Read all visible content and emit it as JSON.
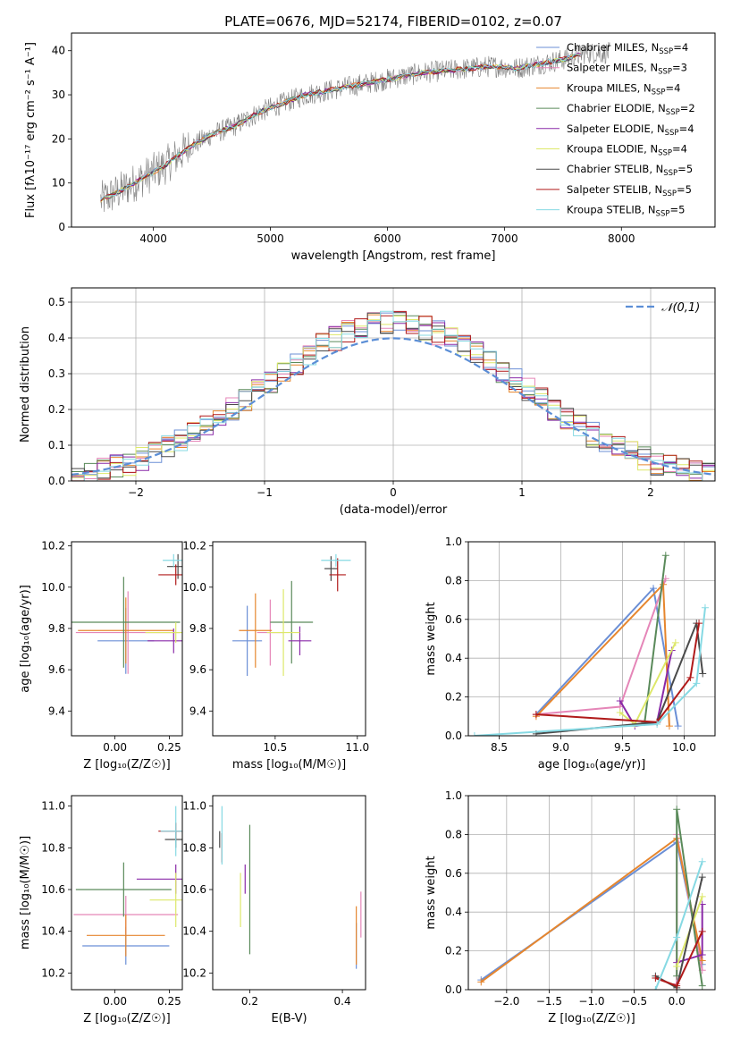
{
  "figure": {
    "title": "PLATE=0676, MJD=52174, FIBERID=0102, z=0.07"
  },
  "models": [
    {
      "name": "Chabrier MILES",
      "nssp": "4",
      "color": "#6b8fd6"
    },
    {
      "name": "Salpeter MILES",
      "nssp": "3",
      "color": "#e586b8"
    },
    {
      "name": "Kroupa MILES",
      "nssp": "4",
      "color": "#e6862e"
    },
    {
      "name": "Chabrier ELODIE",
      "nssp": "2",
      "color": "#5a8a5a"
    },
    {
      "name": "Salpeter ELODIE",
      "nssp": "4",
      "color": "#8a2aa8"
    },
    {
      "name": "Kroupa ELODIE",
      "nssp": "4",
      "color": "#dde86a"
    },
    {
      "name": "Chabrier STELIB",
      "nssp": "5",
      "color": "#4a4a4a"
    },
    {
      "name": "Salpeter STELIB",
      "nssp": "5",
      "color": "#b01a1a"
    },
    {
      "name": "Kroupa STELIB",
      "nssp": "5",
      "color": "#86d9e3"
    }
  ],
  "chart_data": [
    {
      "id": "spectrum",
      "type": "line",
      "xlabel": "wavelength [Angstrom, rest frame]",
      "ylabel": "Flux [fλ10⁻¹⁷ erg cm⁻² s⁻¹ A⁻¹]",
      "xlim": [
        3300,
        8800
      ],
      "ylim": [
        0,
        44
      ],
      "xticks": [
        4000,
        5000,
        6000,
        7000,
        8000
      ],
      "yticks": [
        0,
        10,
        20,
        30,
        40
      ],
      "legend_position": "top-right",
      "data_color": "#808080",
      "spectrum_x": [
        3550,
        3700,
        3900,
        4100,
        4300,
        4500,
        4700,
        4900,
        5100,
        5300,
        5500,
        5700,
        5900,
        6100,
        6300,
        6500,
        6700,
        6900,
        7100,
        7300,
        7500,
        7700
      ],
      "spectrum_y": [
        6,
        8,
        11,
        14,
        18,
        21,
        23,
        26,
        28,
        30,
        31,
        32,
        33,
        34,
        35,
        35.5,
        36,
        36.5,
        36,
        37,
        38,
        39.5
      ]
    },
    {
      "id": "residuals",
      "type": "line",
      "xlabel": "(data-model)/error",
      "ylabel": "Normed distribution",
      "xlim": [
        -2.5,
        2.5
      ],
      "ylim": [
        0,
        0.54
      ],
      "xticks": [
        -2,
        -1,
        0,
        1,
        2
      ],
      "yticks": [
        0.0,
        0.1,
        0.2,
        0.3,
        0.4,
        0.5
      ],
      "grid": true,
      "gaussian_label": "𝒩(0,1)",
      "gaussian_color": "#5b8ed6",
      "legend_position": "top-right"
    },
    {
      "id": "age-vs-Z",
      "type": "scatter",
      "xlabel": "Z [log₁₀(Z/Z☉)]",
      "ylabel": "age  [log₁₀(age/yr)]",
      "xlim": [
        -0.2,
        0.31
      ],
      "ylim": [
        9.28,
        10.22
      ],
      "xticks": [
        0.0,
        0.25
      ],
      "yticks": [
        9.4,
        9.6,
        9.8,
        10.0,
        10.2
      ],
      "points": [
        {
          "model": 0,
          "x": 0.05,
          "y": 9.74,
          "xerr": 0.13,
          "yerr": 0.16
        },
        {
          "model": 1,
          "x": 0.06,
          "y": 9.78,
          "xerr": 0.24,
          "yerr": 0.2
        },
        {
          "model": 2,
          "x": 0.05,
          "y": 9.79,
          "xerr": 0.22,
          "yerr": 0.16
        },
        {
          "model": 3,
          "x": 0.04,
          "y": 9.83,
          "xerr": 0.26,
          "yerr": 0.22
        },
        {
          "model": 4,
          "x": 0.27,
          "y": 9.74,
          "xerr": 0.12,
          "yerr": 0.06
        },
        {
          "model": 5,
          "x": 0.28,
          "y": 9.78,
          "xerr": 0.14,
          "yerr": 0.05
        },
        {
          "model": 6,
          "x": 0.29,
          "y": 10.1,
          "xerr": 0.05,
          "yerr": 0.06
        },
        {
          "model": 7,
          "x": 0.28,
          "y": 10.06,
          "xerr": 0.08,
          "yerr": 0.05
        },
        {
          "model": 8,
          "x": 0.27,
          "y": 10.13,
          "xerr": 0.05,
          "yerr": 0.03
        }
      ]
    },
    {
      "id": "age-vs-mass",
      "type": "scatter",
      "xlabel": "mass [log₁₀(M/M☉)]",
      "ylabel": "",
      "xlim": [
        10.12,
        11.05
      ],
      "ylim": [
        9.28,
        10.22
      ],
      "xticks": [
        10.5,
        11.0
      ],
      "yticks": [
        9.4,
        9.6,
        9.8,
        10.0,
        10.2
      ],
      "points": [
        {
          "model": 0,
          "x": 10.33,
          "y": 9.74,
          "xerr": 0.09,
          "yerr": 0.17
        },
        {
          "model": 1,
          "x": 10.47,
          "y": 9.78,
          "xerr": 0.08,
          "yerr": 0.16
        },
        {
          "model": 2,
          "x": 10.38,
          "y": 9.79,
          "xerr": 0.1,
          "yerr": 0.18
        },
        {
          "model": 3,
          "x": 10.6,
          "y": 9.83,
          "xerr": 0.13,
          "yerr": 0.2
        },
        {
          "model": 4,
          "x": 10.65,
          "y": 9.74,
          "xerr": 0.07,
          "yerr": 0.07
        },
        {
          "model": 5,
          "x": 10.55,
          "y": 9.78,
          "xerr": 0.1,
          "yerr": 0.21
        },
        {
          "model": 6,
          "x": 10.84,
          "y": 10.09,
          "xerr": 0.04,
          "yerr": 0.06
        },
        {
          "model": 7,
          "x": 10.88,
          "y": 10.06,
          "xerr": 0.05,
          "yerr": 0.08
        },
        {
          "model": 8,
          "x": 10.87,
          "y": 10.13,
          "xerr": 0.09,
          "yerr": 0.03
        }
      ]
    },
    {
      "id": "weight-vs-age",
      "type": "line",
      "xlabel": "age  [log₁₀(age/yr)]",
      "ylabel": "mass weight",
      "xlim": [
        8.25,
        10.25
      ],
      "ylim": [
        0,
        1.0
      ],
      "xticks": [
        8.5,
        9.0,
        9.5,
        10.0
      ],
      "yticks": [
        0.0,
        0.2,
        0.4,
        0.6,
        0.8,
        1.0
      ],
      "grid": true,
      "series": [
        {
          "model": 0,
          "x": [
            8.8,
            9.75,
            9.95
          ],
          "y": [
            0.11,
            0.76,
            0.05
          ]
        },
        {
          "model": 1,
          "x": [
            8.8,
            9.48,
            9.85
          ],
          "y": [
            0.11,
            0.15,
            0.81
          ]
        },
        {
          "model": 2,
          "x": [
            8.8,
            9.83,
            9.88
          ],
          "y": [
            0.1,
            0.78,
            0.05
          ]
        },
        {
          "model": 3,
          "x": [
            9.68,
            9.85
          ],
          "y": [
            0.07,
            0.93
          ]
        },
        {
          "model": 4,
          "x": [
            9.48,
            9.6,
            9.78,
            9.9
          ],
          "y": [
            0.18,
            0.05,
            0.07,
            0.44
          ]
        },
        {
          "model": 5,
          "x": [
            9.48,
            9.6,
            9.93
          ],
          "y": [
            0.12,
            0.06,
            0.48
          ]
        },
        {
          "model": 6,
          "x": [
            8.8,
            9.78,
            10.1,
            10.15
          ],
          "y": [
            0.01,
            0.07,
            0.58,
            0.32
          ]
        },
        {
          "model": 7,
          "x": [
            8.8,
            9.78,
            10.05,
            10.12
          ],
          "y": [
            0.11,
            0.07,
            0.3,
            0.58
          ]
        },
        {
          "model": 8,
          "x": [
            8.3,
            9.78,
            10.1,
            10.17
          ],
          "y": [
            0.0,
            0.06,
            0.27,
            0.66
          ]
        }
      ]
    },
    {
      "id": "mass-vs-Z",
      "type": "scatter",
      "xlabel": "Z [log₁₀(Z/Z☉)]",
      "ylabel": "mass [log₁₀(M/M☉)]",
      "xlim": [
        -0.2,
        0.31
      ],
      "ylim": [
        10.12,
        11.05
      ],
      "xticks": [
        0.0,
        0.25
      ],
      "yticks": [
        10.2,
        10.4,
        10.6,
        10.8,
        11.0
      ],
      "points": [
        {
          "model": 0,
          "x": 0.05,
          "y": 10.33,
          "xerr": 0.2,
          "yerr": 0.09
        },
        {
          "model": 1,
          "x": 0.05,
          "y": 10.48,
          "xerr": 0.24,
          "yerr": 0.09
        },
        {
          "model": 2,
          "x": 0.05,
          "y": 10.38,
          "xerr": 0.18,
          "yerr": 0.1
        },
        {
          "model": 3,
          "x": 0.04,
          "y": 10.6,
          "xerr": 0.22,
          "yerr": 0.13
        },
        {
          "model": 4,
          "x": 0.28,
          "y": 10.65,
          "xerr": 0.18,
          "yerr": 0.07
        },
        {
          "model": 5,
          "x": 0.28,
          "y": 10.55,
          "xerr": 0.12,
          "yerr": 0.13
        },
        {
          "model": 6,
          "x": 0.28,
          "y": 10.84,
          "xerr": 0.05,
          "yerr": 0.04
        },
        {
          "model": 7,
          "x": 0.28,
          "y": 10.88,
          "xerr": 0.08,
          "yerr": 0.04
        },
        {
          "model": 8,
          "x": 0.28,
          "y": 10.88,
          "xerr": 0.07,
          "yerr": 0.12
        }
      ]
    },
    {
      "id": "mass-vs-ebv",
      "type": "scatter",
      "xlabel": "E(B-V)",
      "ylabel": "",
      "xlim": [
        0.12,
        0.45
      ],
      "ylim": [
        10.12,
        11.05
      ],
      "xticks": [
        0.2,
        0.4
      ],
      "yticks": [
        10.2,
        10.4,
        10.6,
        10.8,
        11.0
      ],
      "points": [
        {
          "model": 0,
          "x": 0.43,
          "y": 10.33,
          "xerr": 0.0,
          "yerr": 0.11
        },
        {
          "model": 1,
          "x": 0.44,
          "y": 10.48,
          "xerr": 0.0,
          "yerr": 0.11
        },
        {
          "model": 2,
          "x": 0.43,
          "y": 10.38,
          "xerr": 0.0,
          "yerr": 0.14
        },
        {
          "model": 3,
          "x": 0.2,
          "y": 10.6,
          "xerr": 0.0,
          "yerr": 0.31
        },
        {
          "model": 4,
          "x": 0.19,
          "y": 10.65,
          "xerr": 0.0,
          "yerr": 0.07
        },
        {
          "model": 5,
          "x": 0.18,
          "y": 10.55,
          "xerr": 0.0,
          "yerr": 0.13
        },
        {
          "model": 6,
          "x": 0.135,
          "y": 10.84,
          "xerr": 0.0,
          "yerr": 0.04
        },
        {
          "model": 7,
          "x": 0.14,
          "y": 10.8,
          "xerr": 0.0,
          "yerr": 0.07
        },
        {
          "model": 8,
          "x": 0.14,
          "y": 10.86,
          "xerr": 0.0,
          "yerr": 0.14
        }
      ]
    },
    {
      "id": "weight-vs-Z",
      "type": "line",
      "xlabel": "Z [log₁₀(Z/Z☉)]",
      "ylabel": "mass weight",
      "xlim": [
        -2.45,
        0.45
      ],
      "ylim": [
        0,
        1.0
      ],
      "xticks": [
        -2.0,
        -1.5,
        -1.0,
        -0.5,
        0.0
      ],
      "yticks": [
        0.0,
        0.2,
        0.4,
        0.6,
        0.8,
        1.0
      ],
      "grid": true,
      "series": [
        {
          "model": 0,
          "x": [
            -2.3,
            0.0,
            0.3
          ],
          "y": [
            0.05,
            0.76,
            0.13
          ]
        },
        {
          "model": 1,
          "x": [
            0.0,
            0.0,
            0.3
          ],
          "y": [
            0.03,
            0.8,
            0.1
          ]
        },
        {
          "model": 2,
          "x": [
            -2.3,
            0.0,
            0.3
          ],
          "y": [
            0.04,
            0.78,
            0.15
          ]
        },
        {
          "model": 3,
          "x": [
            0.0,
            0.0,
            0.3
          ],
          "y": [
            0.07,
            0.93,
            0.02
          ]
        },
        {
          "model": 4,
          "x": [
            0.0,
            0.3,
            0.3
          ],
          "y": [
            0.14,
            0.18,
            0.44
          ]
        },
        {
          "model": 5,
          "x": [
            0.0,
            0.3
          ],
          "y": [
            0.12,
            0.48
          ]
        },
        {
          "model": 6,
          "x": [
            -0.25,
            0.0,
            0.3
          ],
          "y": [
            0.07,
            0.01,
            0.58
          ]
        },
        {
          "model": 7,
          "x": [
            -0.25,
            0.0,
            0.3
          ],
          "y": [
            0.06,
            0.02,
            0.3
          ]
        },
        {
          "model": 8,
          "x": [
            -0.25,
            0.0,
            0.3
          ],
          "y": [
            0.0,
            0.27,
            0.66
          ]
        }
      ]
    }
  ]
}
